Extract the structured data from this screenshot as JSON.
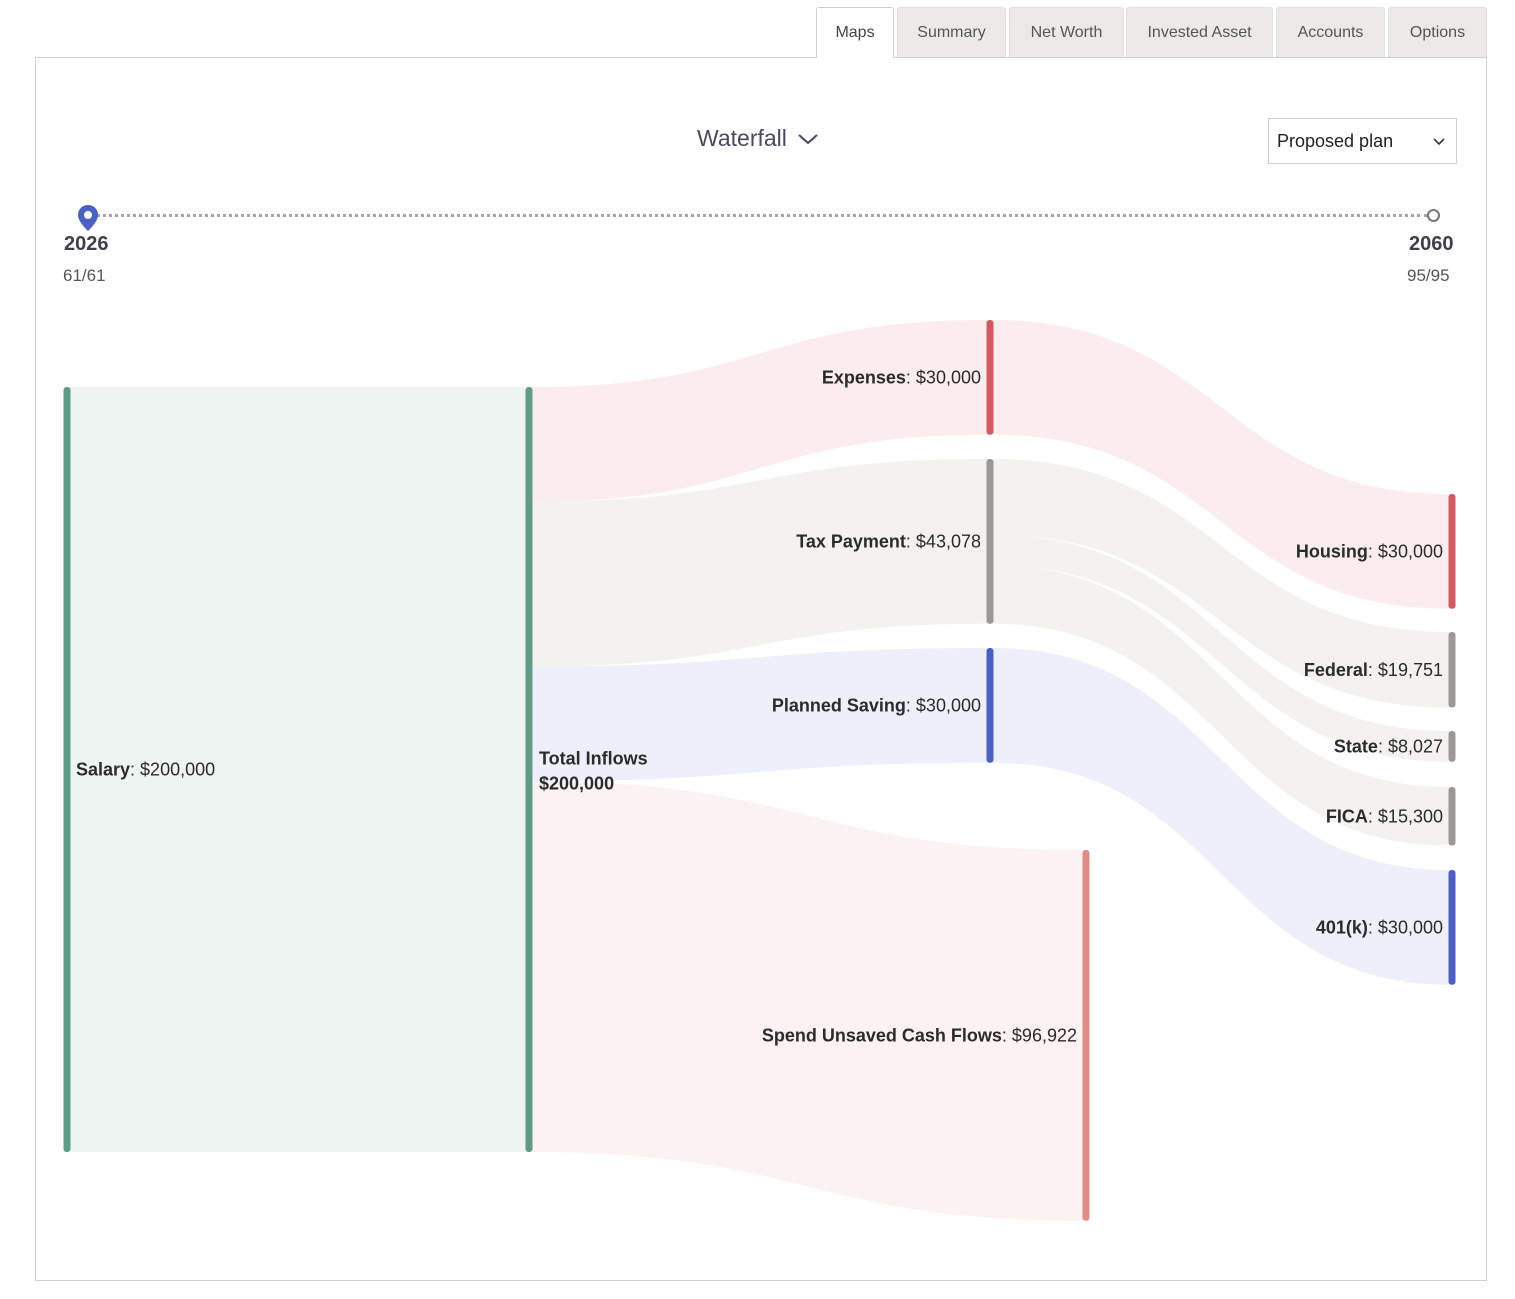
{
  "tabs": [
    "Maps",
    "Summary",
    "Net Worth",
    "Invested Asset",
    "Accounts",
    "Options"
  ],
  "active_tab": "Maps",
  "view_selector": {
    "label": "Waterfall"
  },
  "plan_selector": {
    "value": "Proposed plan"
  },
  "timeline": {
    "start": {
      "year": "2026",
      "ages": "61/61"
    },
    "end": {
      "year": "2060",
      "ages": "95/95"
    }
  },
  "colors": {
    "salary": "#5f9b85",
    "expenses": "#d25b63",
    "tax": "#9c9897",
    "saving": "#4c5fc2",
    "spend": "#de8c88",
    "pin": "#4c5fc2"
  },
  "chart_data": {
    "type": "sankey",
    "nodes": [
      {
        "id": "salary",
        "name": "Salary",
        "value": 200000,
        "value_label": "$200,000"
      },
      {
        "id": "total",
        "name": "Total Inflows",
        "value": 200000,
        "value_label": "$200,000"
      },
      {
        "id": "expenses",
        "name": "Expenses",
        "value": 30000,
        "value_label": "$30,000"
      },
      {
        "id": "tax",
        "name": "Tax Payment",
        "value": 43078,
        "value_label": "$43,078"
      },
      {
        "id": "saving",
        "name": "Planned Saving",
        "value": 30000,
        "value_label": "$30,000"
      },
      {
        "id": "spend",
        "name": "Spend Unsaved Cash Flows",
        "value": 96922,
        "value_label": "$96,922"
      },
      {
        "id": "housing",
        "name": "Housing",
        "value": 30000,
        "value_label": "$30,000"
      },
      {
        "id": "federal",
        "name": "Federal",
        "value": 19751,
        "value_label": "$19,751"
      },
      {
        "id": "state",
        "name": "State",
        "value": 8027,
        "value_label": "$8,027"
      },
      {
        "id": "fica",
        "name": "FICA",
        "value": 15300,
        "value_label": "$15,300"
      },
      {
        "id": "401k",
        "name": "401(k)",
        "value": 30000,
        "value_label": "$30,000"
      }
    ],
    "links": [
      {
        "source": "salary",
        "target": "total",
        "value": 200000
      },
      {
        "source": "total",
        "target": "expenses",
        "value": 30000
      },
      {
        "source": "total",
        "target": "tax",
        "value": 43078
      },
      {
        "source": "total",
        "target": "saving",
        "value": 30000
      },
      {
        "source": "total",
        "target": "spend",
        "value": 96922
      },
      {
        "source": "expenses",
        "target": "housing",
        "value": 30000
      },
      {
        "source": "tax",
        "target": "federal",
        "value": 19751
      },
      {
        "source": "tax",
        "target": "state",
        "value": 8027
      },
      {
        "source": "tax",
        "target": "fica",
        "value": 15300
      },
      {
        "source": "saving",
        "target": "401k",
        "value": 30000
      }
    ]
  }
}
